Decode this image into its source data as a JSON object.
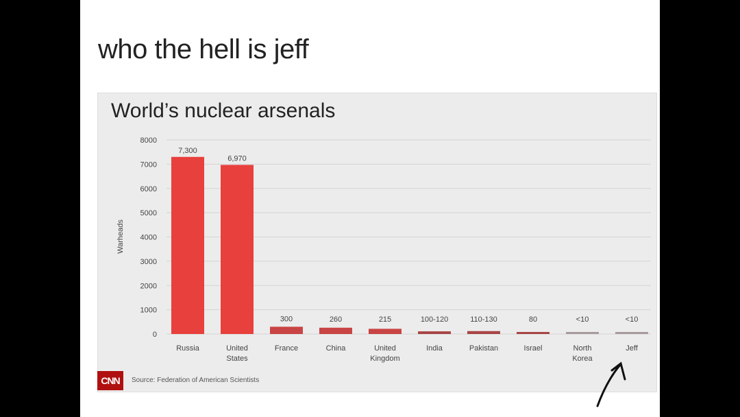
{
  "meme_title": "who the hell is jeff",
  "chart_data": {
    "type": "bar",
    "title": "World’s nuclear arsenals",
    "ylabel": "Warheads",
    "xlabel": "",
    "ylim": [
      0,
      8000
    ],
    "yticks": [
      "0",
      "1000",
      "2000",
      "3000",
      "4000",
      "5000",
      "6000",
      "7000",
      "8000"
    ],
    "grid": true,
    "categories": [
      [
        "Russia"
      ],
      [
        "United",
        "States"
      ],
      [
        "France"
      ],
      [
        "China"
      ],
      [
        "United",
        "Kingdom"
      ],
      [
        "India"
      ],
      [
        "Pakistan"
      ],
      [
        "Israel"
      ],
      [
        "North",
        "Korea"
      ],
      [
        "Jeff"
      ]
    ],
    "values": [
      7300,
      6970,
      300,
      260,
      215,
      110,
      120,
      80,
      10,
      10
    ],
    "data_labels": [
      "7,300",
      "6,970",
      "300",
      "260",
      "215",
      "100-120",
      "110-130",
      "80",
      "<10",
      "<10"
    ],
    "bar_colors": [
      "#e8403c",
      "#e8403c",
      "#c94444",
      "#c94444",
      "#c94444",
      "#a84444",
      "#a84444",
      "#a84444",
      "#a89a9a",
      "#a89a9a"
    ],
    "source": "Source: Federation of American Scientists",
    "logo": "CNN"
  }
}
